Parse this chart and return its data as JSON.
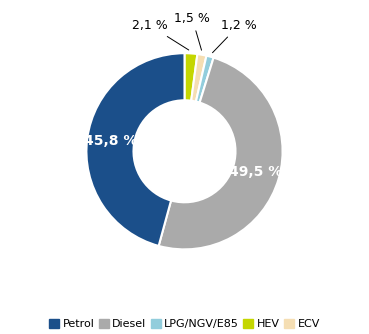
{
  "labels": [
    "Petrol",
    "Diesel",
    "LPG/NGV/E85",
    "ECV",
    "HEV"
  ],
  "values": [
    45.8,
    49.5,
    1.2,
    1.5,
    2.1
  ],
  "colors": [
    "#1b4f8a",
    "#aaaaaa",
    "#92cddc",
    "#f5deb3",
    "#c4d600"
  ],
  "inner_labels": [
    "45,8 %",
    "49,5 %",
    "",
    "",
    ""
  ],
  "outer_labels": [
    "",
    "",
    "1,2 %",
    "1,5 %",
    "2,1 %"
  ],
  "legend_order": [
    0,
    1,
    2,
    4,
    3
  ],
  "legend_labels": [
    "Petrol",
    "Diesel",
    "LPG/NGV/E85",
    "HEV",
    "ECV"
  ],
  "legend_colors": [
    "#1b4f8a",
    "#aaaaaa",
    "#92cddc",
    "#c4d600",
    "#f5deb3"
  ],
  "background_color": "#ffffff",
  "wedge_edge_color": "#ffffff",
  "donut_width": 0.48,
  "label_fontsize": 9,
  "legend_fontsize": 8,
  "start_angle": 90,
  "counterclock": false
}
